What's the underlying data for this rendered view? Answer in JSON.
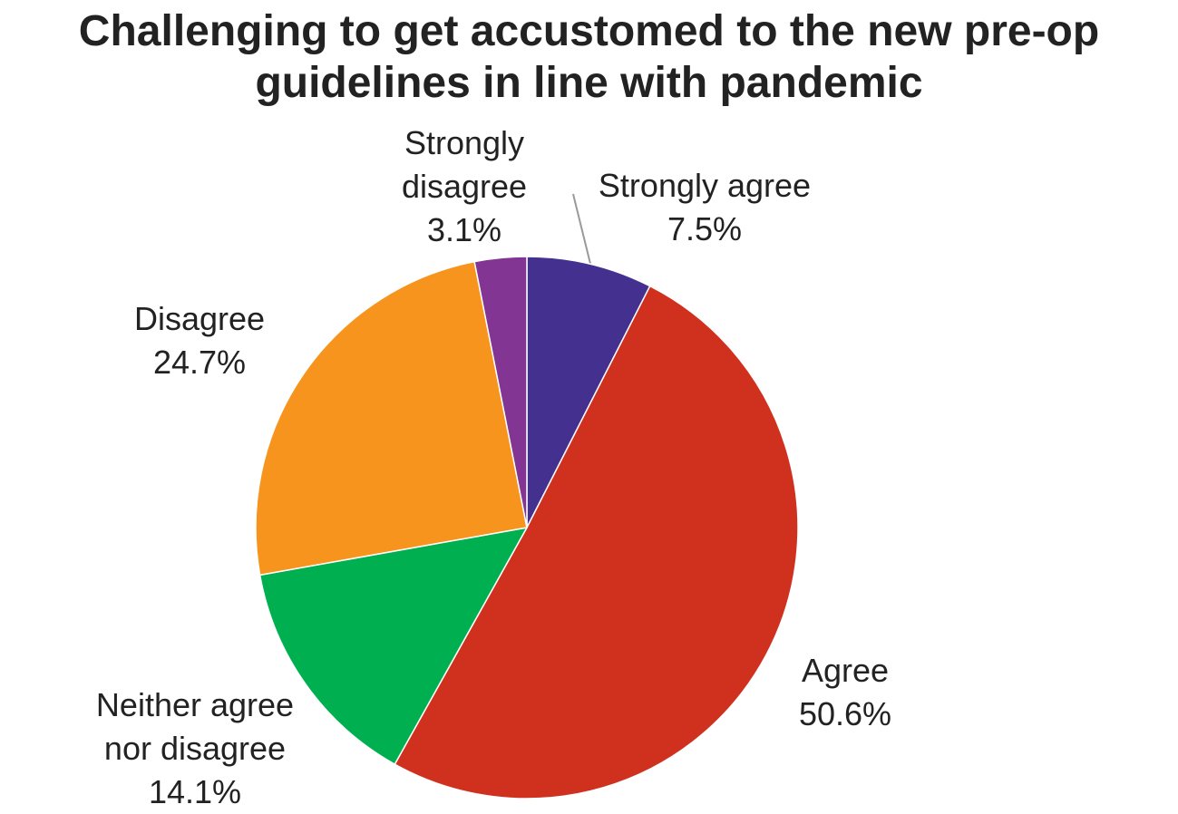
{
  "chart_data": {
    "type": "pie",
    "title": "Challenging to get accustomed to the new pre-op guidelines in line with pandemic",
    "categories": [
      "Strongly agree",
      "Agree",
      "Neither agree nor disagree",
      "Disagree",
      "Strongly disagree"
    ],
    "values": [
      7.5,
      50.6,
      14.1,
      24.7,
      3.1
    ],
    "value_labels": [
      "7.5%",
      "50.6%",
      "14.1%",
      "24.7%",
      "3.1%"
    ],
    "colors": [
      "#43308f",
      "#d0311f",
      "#00b050",
      "#f7941d",
      "#833593"
    ]
  }
}
